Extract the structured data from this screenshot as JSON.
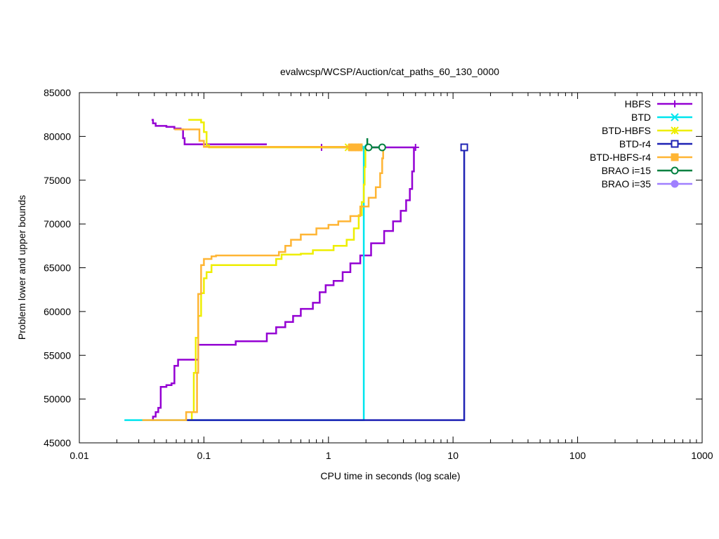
{
  "chart_data": {
    "type": "line",
    "title": "evalwcsp/WCSP/Auction/cat_paths_60_130_0000",
    "xlabel": "CPU time in seconds (log scale)",
    "ylabel": "Problem lower and upper bounds",
    "xscale": "log",
    "xlim": [
      0.01,
      1000
    ],
    "ylim": [
      45000,
      85000
    ],
    "xticks": [
      0.01,
      0.1,
      1,
      10,
      100,
      1000
    ],
    "xtick_labels": [
      "0.01",
      "0.1",
      "1",
      "10",
      "100",
      "1000"
    ],
    "yticks": [
      45000,
      50000,
      55000,
      60000,
      65000,
      70000,
      75000,
      80000,
      85000
    ],
    "ytick_labels": [
      "45000",
      "50000",
      "55000",
      "60000",
      "65000",
      "70000",
      "75000",
      "80000",
      "85000"
    ],
    "grid": false,
    "legend_position": "top-right",
    "series": [
      {
        "name": "HBFS",
        "color": "#9400d3",
        "marker": "plus",
        "upper": [
          [
            0.038,
            81900
          ],
          [
            0.039,
            81500
          ],
          [
            0.041,
            81200
          ],
          [
            0.05,
            81100
          ],
          [
            0.058,
            80900
          ],
          [
            0.065,
            80800
          ],
          [
            0.068,
            79800
          ],
          [
            0.07,
            79100
          ],
          [
            0.1,
            79100
          ],
          [
            0.32,
            79100
          ]
        ],
        "lower": [
          [
            0.038,
            47600
          ],
          [
            0.039,
            48000
          ],
          [
            0.041,
            48500
          ],
          [
            0.043,
            49000
          ],
          [
            0.045,
            51400
          ],
          [
            0.05,
            51600
          ],
          [
            0.055,
            51800
          ],
          [
            0.058,
            53800
          ],
          [
            0.062,
            54500
          ],
          [
            0.088,
            54500
          ],
          [
            0.09,
            56200
          ],
          [
            0.15,
            56200
          ],
          [
            0.18,
            56600
          ],
          [
            0.3,
            56600
          ],
          [
            0.32,
            57500
          ],
          [
            0.38,
            58200
          ],
          [
            0.45,
            58800
          ],
          [
            0.52,
            59500
          ],
          [
            0.6,
            60300
          ],
          [
            0.75,
            61000
          ],
          [
            0.85,
            62200
          ],
          [
            0.95,
            63000
          ],
          [
            1.1,
            63500
          ],
          [
            1.3,
            64500
          ],
          [
            1.5,
            65500
          ],
          [
            1.8,
            66400
          ],
          [
            2.2,
            67800
          ],
          [
            2.8,
            69200
          ],
          [
            3.3,
            70300
          ],
          [
            3.8,
            71500
          ],
          [
            4.2,
            72700
          ],
          [
            4.5,
            74000
          ],
          [
            4.7,
            76000
          ],
          [
            4.85,
            78700
          ]
        ],
        "final": [
          [
            0.88,
            78750
          ],
          [
            5.0,
            78750
          ]
        ]
      },
      {
        "name": "BTD",
        "color": "#00e5ee",
        "marker": "cross",
        "lower": [
          [
            0.023,
            47600
          ],
          [
            1.92,
            47600
          ],
          [
            1.92,
            78750
          ]
        ],
        "final": [
          [
            1.92,
            78750
          ]
        ]
      },
      {
        "name": "BTD-HBFS",
        "color": "#eeee00",
        "marker": "star",
        "upper": [
          [
            0.075,
            81900
          ],
          [
            0.085,
            81900
          ],
          [
            0.095,
            81600
          ],
          [
            0.1,
            80500
          ],
          [
            0.105,
            79000
          ],
          [
            0.11,
            78750
          ],
          [
            1.6,
            78750
          ]
        ],
        "lower": [
          [
            0.078,
            47600
          ],
          [
            0.08,
            48500
          ],
          [
            0.083,
            53000
          ],
          [
            0.086,
            57000
          ],
          [
            0.09,
            59500
          ],
          [
            0.095,
            62100
          ],
          [
            0.1,
            63800
          ],
          [
            0.105,
            64500
          ],
          [
            0.115,
            65300
          ],
          [
            0.35,
            65300
          ],
          [
            0.38,
            66000
          ],
          [
            0.42,
            66500
          ],
          [
            0.6,
            66600
          ],
          [
            0.75,
            67000
          ],
          [
            1.1,
            67500
          ],
          [
            1.4,
            68200
          ],
          [
            1.6,
            69500
          ],
          [
            1.75,
            71000
          ],
          [
            1.85,
            72500
          ],
          [
            1.92,
            74500
          ],
          [
            1.95,
            76500
          ],
          [
            1.98,
            78750
          ]
        ],
        "final": [
          [
            1.45,
            78750
          ],
          [
            1.65,
            78750
          ]
        ]
      },
      {
        "name": "BTD-r4",
        "color": "#1e22b4",
        "marker": "square-open",
        "lower": [
          [
            0.072,
            47600
          ],
          [
            12.3,
            47600
          ],
          [
            12.3,
            78750
          ]
        ],
        "final": [
          [
            12.3,
            78750
          ]
        ]
      },
      {
        "name": "BTD-HBFS-r4",
        "color": "#ffb534",
        "marker": "square-filled",
        "upper": [
          [
            0.058,
            80800
          ],
          [
            0.085,
            80800
          ],
          [
            0.092,
            79500
          ],
          [
            0.1,
            78800
          ],
          [
            1.5,
            78750
          ]
        ],
        "lower": [
          [
            0.032,
            47600
          ],
          [
            0.07,
            47600
          ],
          [
            0.072,
            48500
          ],
          [
            0.085,
            48500
          ],
          [
            0.088,
            53000
          ],
          [
            0.09,
            62000
          ],
          [
            0.095,
            65300
          ],
          [
            0.1,
            66000
          ],
          [
            0.115,
            66300
          ],
          [
            0.125,
            66400
          ],
          [
            0.36,
            66400
          ],
          [
            0.4,
            66800
          ],
          [
            0.45,
            67500
          ],
          [
            0.5,
            68200
          ],
          [
            0.6,
            68800
          ],
          [
            0.8,
            69500
          ],
          [
            1.0,
            69900
          ],
          [
            1.2,
            70300
          ],
          [
            1.5,
            70900
          ],
          [
            1.8,
            72000
          ],
          [
            2.1,
            73000
          ],
          [
            2.4,
            74200
          ],
          [
            2.6,
            75800
          ],
          [
            2.7,
            77500
          ],
          [
            2.75,
            78750
          ]
        ],
        "final": [
          [
            1.55,
            78750
          ],
          [
            1.75,
            78750
          ]
        ]
      },
      {
        "name": "BRAO i=15",
        "color": "#008040",
        "marker": "circle-open",
        "upper": [
          [
            2.05,
            79800
          ],
          [
            2.05,
            78750
          ]
        ],
        "final": [
          [
            2.1,
            78750
          ],
          [
            2.7,
            78750
          ]
        ]
      },
      {
        "name": "BRAO i=35",
        "color": "#a080ff",
        "marker": "circle-filled"
      }
    ]
  }
}
